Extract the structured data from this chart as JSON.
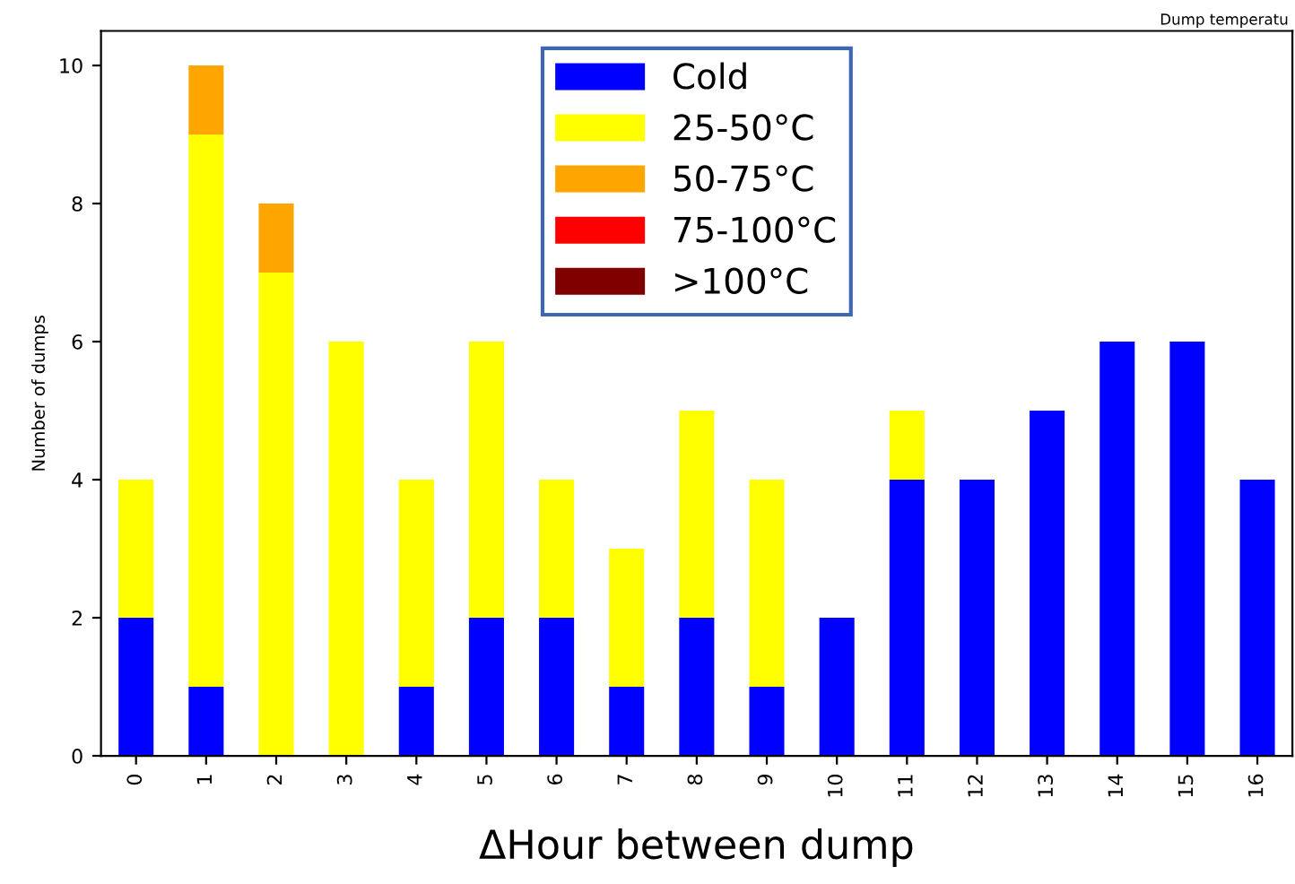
{
  "chart_data": {
    "type": "bar",
    "title": "Dump temperatu",
    "xlabel": "ΔHour between dump",
    "ylabel": "Number of dumps",
    "categories": [
      "0",
      "1",
      "2",
      "3",
      "4",
      "5",
      "6",
      "7",
      "8",
      "9",
      "10",
      "11",
      "12",
      "13",
      "14",
      "15",
      "16"
    ],
    "stacked": true,
    "legend": "top",
    "series": [
      {
        "name": "Cold",
        "color": "#0000ff",
        "values": [
          2,
          1,
          0,
          0,
          1,
          2,
          2,
          1,
          2,
          1,
          2,
          4,
          4,
          5,
          6,
          6,
          4
        ]
      },
      {
        "name": "25-50°C",
        "color": "#ffff00",
        "values": [
          2,
          8,
          7,
          6,
          3,
          4,
          2,
          2,
          3,
          3,
          0,
          1,
          0,
          0,
          0,
          0,
          0
        ]
      },
      {
        "name": "50-75°C",
        "color": "#ffa500",
        "values": [
          0,
          1,
          1,
          0,
          0,
          0,
          0,
          0,
          0,
          0,
          0,
          0,
          0,
          0,
          0,
          0,
          0
        ]
      },
      {
        "name": "75-100°C",
        "color": "#ff0000",
        "values": [
          0,
          0,
          0,
          0,
          0,
          0,
          0,
          0,
          0,
          0,
          0,
          0,
          0,
          0,
          0,
          0,
          0
        ]
      },
      {
        "name": ">100°C",
        "color": "#800000",
        "values": [
          0,
          0,
          0,
          0,
          0,
          0,
          0,
          0,
          0,
          0,
          0,
          0,
          0,
          0,
          0,
          0,
          0
        ]
      }
    ],
    "ylim": [
      0,
      10.5
    ],
    "yticks": [
      0,
      2,
      4,
      6,
      8,
      10
    ]
  }
}
